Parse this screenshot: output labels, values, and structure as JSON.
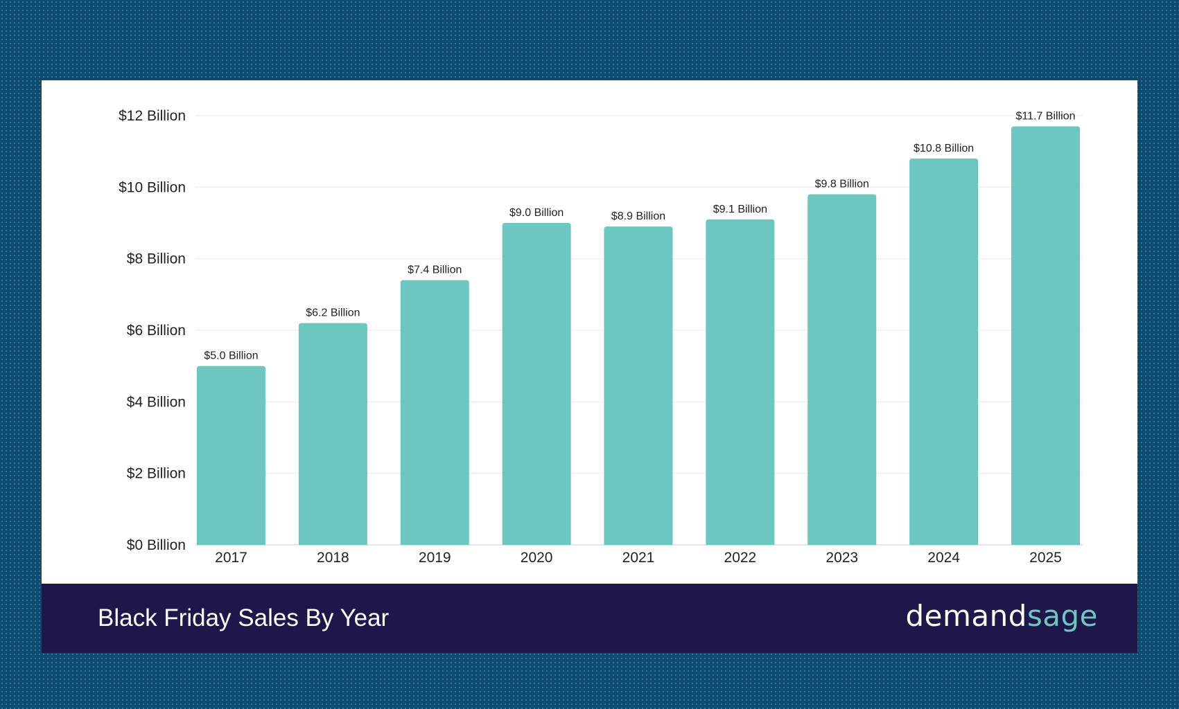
{
  "chart_data": {
    "type": "bar",
    "title": "Black Friday Sales By Year",
    "categories": [
      "2017",
      "2018",
      "2019",
      "2020",
      "2021",
      "2022",
      "2023",
      "2024",
      "2025"
    ],
    "values": [
      5.0,
      6.2,
      7.4,
      9.0,
      8.9,
      9.1,
      9.8,
      10.8,
      11.7
    ],
    "data_labels": [
      "$5.0 Billion",
      "$6.2 Billion",
      "$7.4 Billion",
      "$9.0 Billion",
      "$8.9 Billion",
      "$9.1 Billion",
      "$9.8 Billion",
      "$10.8 Billion",
      "$11.7 Billion"
    ],
    "yticks": [
      0,
      2,
      4,
      6,
      8,
      10,
      12
    ],
    "ytick_labels": [
      "$0 Billion",
      "$2 Billion",
      "$4 Billion",
      "$6 Billion",
      "$8 Billion",
      "$10 Billion",
      "$12 Billion"
    ],
    "ylim": [
      0,
      12
    ],
    "xlabel": "",
    "ylabel": "",
    "grid": true,
    "bar_color": "#6cc7c1"
  },
  "footer": {
    "title": "Black Friday Sales By Year",
    "logo_part1": "demand",
    "logo_part2": "sage"
  }
}
